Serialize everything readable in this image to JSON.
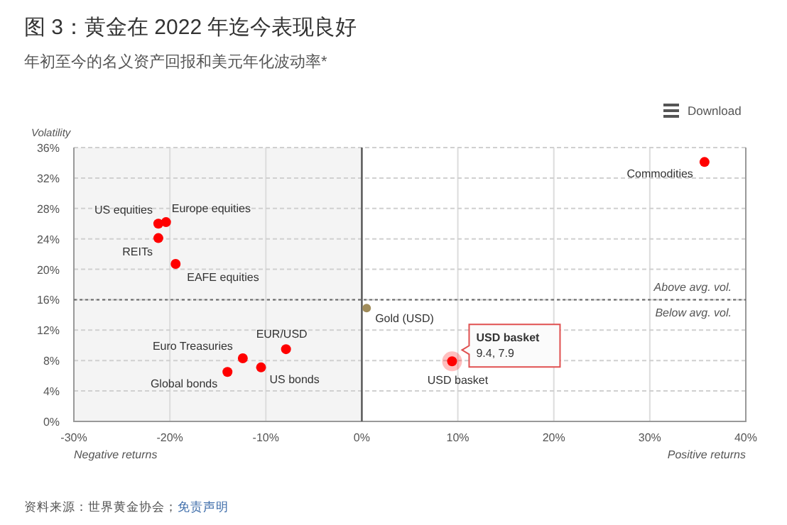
{
  "chart_data": {
    "type": "scatter",
    "title": "图 3：黄金在 2022 年迄今表现良好",
    "subtitle": "年初至今的名义资产回报和美元年化波动率*",
    "ylabel": "Volatility",
    "xlim": [
      -30,
      40
    ],
    "xticks": [
      {
        "value": -30,
        "label": "-30%"
      },
      {
        "value": -20,
        "label": "-20%"
      },
      {
        "value": -10,
        "label": "-10%"
      },
      {
        "value": 0,
        "label": "0%"
      },
      {
        "value": 10,
        "label": "10%"
      },
      {
        "value": 20,
        "label": "20%"
      },
      {
        "value": 30,
        "label": "30%"
      },
      {
        "value": 40,
        "label": "40%"
      }
    ],
    "ylim": [
      0,
      36
    ],
    "yticks": [
      {
        "value": 0,
        "label": "0%"
      },
      {
        "value": 4,
        "label": "4%"
      },
      {
        "value": 8,
        "label": "8%"
      },
      {
        "value": 12,
        "label": "12%"
      },
      {
        "value": 16,
        "label": "16%"
      },
      {
        "value": 20,
        "label": "20%"
      },
      {
        "value": 24,
        "label": "24%"
      },
      {
        "value": 28,
        "label": "28%"
      },
      {
        "value": 32,
        "label": "32%"
      },
      {
        "value": 36,
        "label": "36%"
      }
    ],
    "grid": true,
    "marker": "circle",
    "series": [
      {
        "name": "US equities",
        "color": "#ff0000",
        "x": [
          -21.2
        ],
        "values": [
          26.0
        ]
      },
      {
        "name": "Europe equities",
        "color": "#ff0000",
        "x": [
          -20.4
        ],
        "values": [
          26.2
        ]
      },
      {
        "name": "REITs",
        "color": "#ff0000",
        "x": [
          -21.2
        ],
        "values": [
          24.1
        ]
      },
      {
        "name": "EAFE equities",
        "color": "#ff0000",
        "x": [
          -19.4
        ],
        "values": [
          20.7
        ]
      },
      {
        "name": "EUR/USD",
        "color": "#ff0000",
        "x": [
          -7.9
        ],
        "values": [
          9.5
        ]
      },
      {
        "name": "Euro Treasuries",
        "color": "#ff0000",
        "x": [
          -12.4
        ],
        "values": [
          8.3
        ]
      },
      {
        "name": "US bonds",
        "color": "#ff0000",
        "x": [
          -10.5
        ],
        "values": [
          7.1
        ]
      },
      {
        "name": "Global bonds",
        "color": "#ff0000",
        "x": [
          -14.0
        ],
        "values": [
          6.5
        ]
      },
      {
        "name": "Gold (USD)",
        "color": "#a08c5a",
        "x": [
          0.5
        ],
        "values": [
          14.9
        ]
      },
      {
        "name": "Commodities",
        "color": "#ff0000",
        "x": [
          35.7
        ],
        "values": [
          34.1
        ]
      },
      {
        "name": "USD basket",
        "color": "#ff0000",
        "x": [
          9.4
        ],
        "values": [
          7.9
        ]
      }
    ],
    "ref_lines": [
      {
        "axis": "x",
        "value": 0,
        "color": "#555555",
        "line_style": "solid"
      },
      {
        "axis": "y",
        "value": 16,
        "label": "Above avg. vol.",
        "color": "#666666",
        "line_style": "dotted"
      }
    ],
    "bands": [
      {
        "axis": "x",
        "from": -30,
        "to": 0,
        "color": "#f4f4f4"
      }
    ],
    "annotations": [
      "Negative returns",
      "Positive returns",
      "Below avg. vol.",
      {
        "text": "USD basket\n9.4, 7.9",
        "x": 9.4,
        "y": 7.9
      },
      "资料来源：世界黄金协会；",
      "免责声明",
      "Download"
    ]
  }
}
